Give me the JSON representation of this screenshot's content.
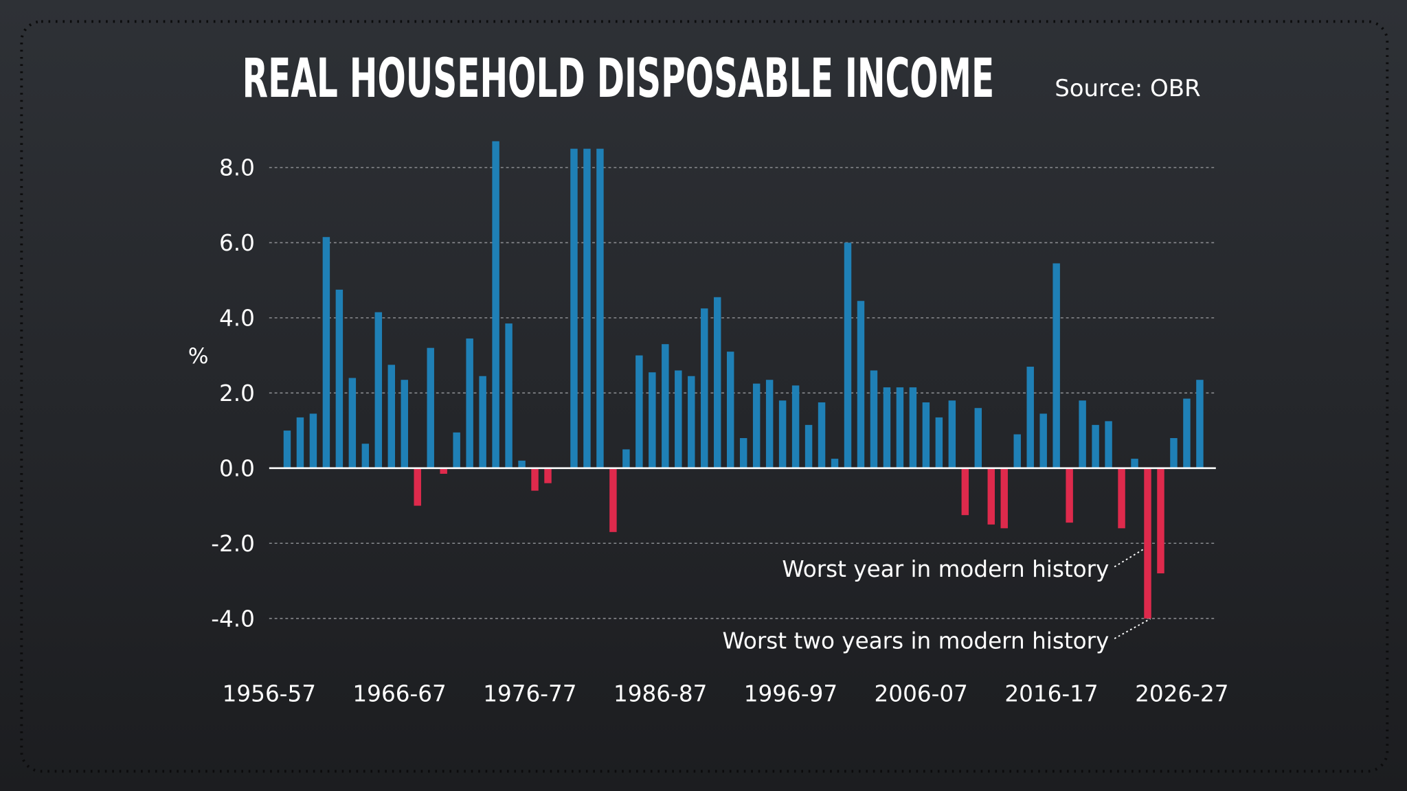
{
  "chart_data": {
    "type": "bar",
    "title": "REAL HOUSEHOLD DISPOSABLE INCOME",
    "source": "Source: OBR",
    "ylabel": "%",
    "categories": [
      "1956-57",
      null,
      null,
      null,
      null,
      null,
      null,
      null,
      null,
      null,
      "1966-67",
      null,
      null,
      null,
      null,
      null,
      null,
      null,
      null,
      null,
      "1976-77",
      null,
      null,
      null,
      null,
      null,
      null,
      null,
      null,
      null,
      "1986-87",
      null,
      null,
      null,
      null,
      null,
      null,
      null,
      null,
      null,
      "1996-97",
      null,
      null,
      null,
      null,
      null,
      null,
      null,
      null,
      null,
      "2006-07",
      null,
      null,
      null,
      null,
      null,
      null,
      null,
      null,
      null,
      "2016-17",
      null,
      null,
      null,
      null,
      null,
      null,
      null,
      null,
      null,
      "2026-27"
    ],
    "values": [
      1.0,
      1.35,
      1.45,
      6.15,
      4.75,
      2.4,
      0.65,
      4.15,
      2.75,
      2.35,
      -1.0,
      3.2,
      -0.15,
      0.95,
      3.45,
      2.45,
      8.7,
      3.85,
      0.2,
      -0.6,
      -0.4,
      0,
      8.5,
      8.5,
      8.5,
      -1.7,
      0.5,
      3.0,
      2.55,
      3.3,
      2.6,
      2.45,
      4.25,
      4.55,
      3.1,
      0.8,
      2.25,
      2.35,
      1.8,
      2.2,
      1.15,
      1.75,
      0.25,
      6.0,
      4.45,
      2.6,
      2.15,
      2.15,
      2.15,
      1.75,
      1.35,
      1.8,
      -1.25,
      1.6,
      -1.5,
      -1.6,
      0.9,
      2.7,
      1.45,
      5.45,
      -1.45,
      1.8,
      1.15,
      1.25,
      -1.6,
      0.25,
      -4.0,
      -2.8,
      0.8,
      1.85,
      2.35
    ],
    "color": "#1f80b6",
    "negative_color": "#de2a4c",
    "ylim": [
      -4.5,
      9
    ],
    "yticks": [
      {
        "value": -4,
        "label": "-4.0"
      },
      {
        "value": -2,
        "label": "-2.0"
      },
      {
        "value": 0,
        "label": "0.0"
      },
      {
        "value": 2,
        "label": "2.0"
      },
      {
        "value": 4,
        "label": "4.0"
      },
      {
        "value": 6,
        "label": "6.0"
      },
      {
        "value": 8,
        "label": "8.0"
      }
    ],
    "grid": true,
    "annotations": [
      "Worst year in modern history",
      "Worst two years in modern history"
    ]
  }
}
